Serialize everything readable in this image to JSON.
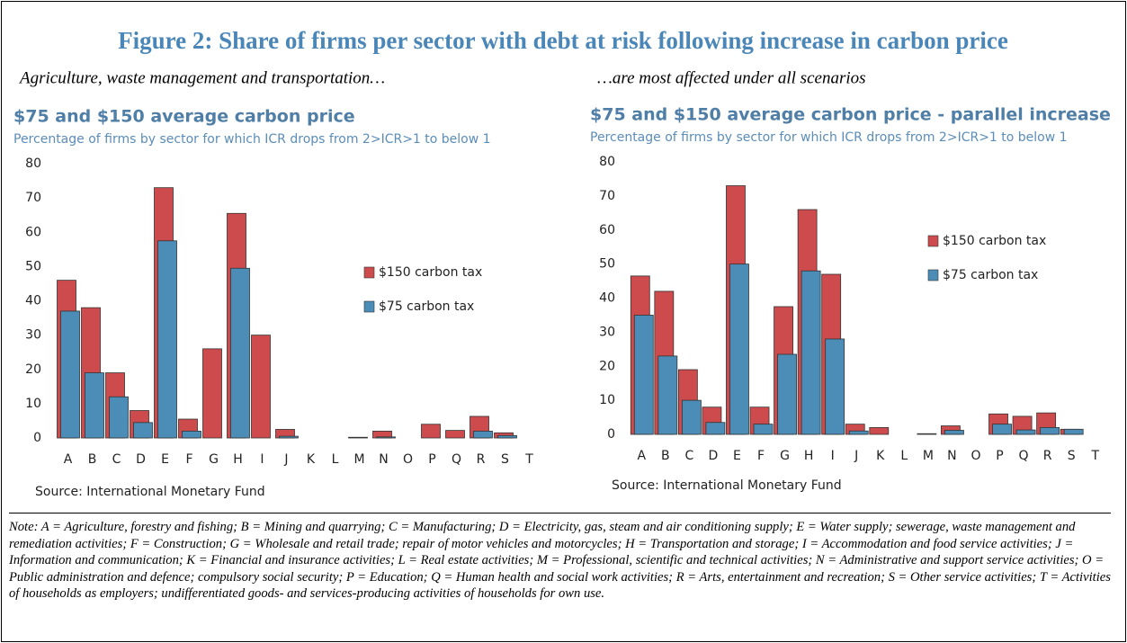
{
  "figure_title": "Figure 2: Share of firms per sector with debt at risk following increase in carbon price",
  "left_caption": "Agriculture, waste management and transportation…",
  "right_caption": "…are most affected under all scenarios",
  "chart_data": [
    {
      "type": "bar",
      "title": "$75 and $150 average carbon price",
      "subtitle": "Percentage of firms by sector for which ICR drops from 2>ICR>1 to below 1",
      "source": "Source: International Monetary Fund",
      "categories": [
        "A",
        "B",
        "C",
        "D",
        "E",
        "F",
        "G",
        "H",
        "I",
        "J",
        "K",
        "L",
        "M",
        "N",
        "O",
        "P",
        "Q",
        "R",
        "S",
        "T"
      ],
      "series": [
        {
          "name": "$150 carbon tax",
          "color": "#cd4b4c",
          "values": [
            46,
            38,
            19,
            8,
            73,
            5.5,
            26,
            65.5,
            30,
            2.5,
            0,
            0,
            0.2,
            2,
            0,
            4,
            2.2,
            6.3,
            1.5,
            0
          ]
        },
        {
          "name": "$75 carbon tax",
          "color": "#4b8db6",
          "values": [
            37,
            19,
            12,
            4.5,
            57.5,
            2,
            0,
            49.5,
            0,
            0.5,
            0,
            0,
            0,
            0.3,
            0,
            0,
            0,
            2,
            0.7,
            0
          ]
        }
      ],
      "ylim": [
        0,
        80
      ],
      "yticks": [
        0,
        10,
        20,
        30,
        40,
        50,
        60,
        70,
        80
      ],
      "grid": false
    },
    {
      "type": "bar",
      "title": "$75 and $150 average carbon price - parallel increase",
      "subtitle": "Percentage of firms by sector for which ICR drops from 2>ICR>1 to below 1",
      "source": "Source: International Monetary Fund",
      "categories": [
        "A",
        "B",
        "C",
        "D",
        "E",
        "F",
        "G",
        "H",
        "I",
        "J",
        "K",
        "L",
        "M",
        "N",
        "O",
        "P",
        "Q",
        "R",
        "S",
        "T"
      ],
      "series": [
        {
          "name": "$150 carbon tax",
          "color": "#cd4b4c",
          "values": [
            46.5,
            42,
            19,
            8,
            73,
            8,
            37.5,
            66,
            47,
            3,
            2,
            0,
            0.2,
            2.5,
            0,
            6,
            5.3,
            6.3,
            1.5,
            0
          ]
        },
        {
          "name": "$75 carbon tax",
          "color": "#4b8db6",
          "values": [
            35,
            23,
            10,
            3.5,
            50,
            3,
            23.5,
            48,
            28,
            1,
            0,
            0,
            0,
            1.2,
            0,
            3,
            1.3,
            2,
            1.5,
            0
          ]
        }
      ],
      "ylim": [
        0,
        80
      ],
      "yticks": [
        0,
        10,
        20,
        30,
        40,
        50,
        60,
        70,
        80
      ],
      "grid": false
    }
  ],
  "note": "Note: A = Agriculture, forestry and fishing; B = Mining and quarrying; C = Manufacturing; D = Electricity, gas, steam and air conditioning supply; E = Water supply; sewerage, waste management and remediation activities; F = Construction; G = Wholesale and retail trade; repair of motor vehicles and motorcycles; H = Transportation and storage; I = Accommodation and food service activities; J = Information and communication; K = Financial and insurance activities; L = Real estate activities; M = Professional, scientific and technical activities; N = Administrative and support service activities; O = Public administration and defence; compulsory social security; P = Education; Q = Human health and social work activities; R = Arts, entertainment and recreation; S = Other service activities; T = Activities of households as employers; undifferentiated goods- and services-producing activities of households for own use."
}
